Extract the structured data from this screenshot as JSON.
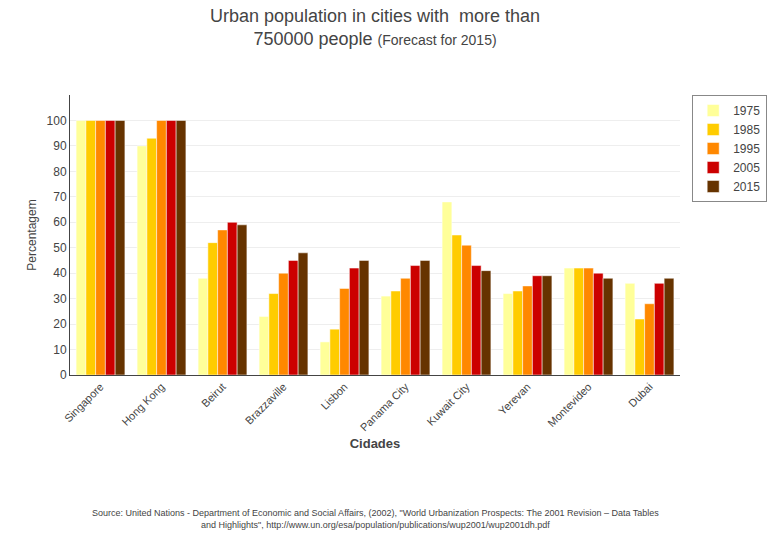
{
  "chart_data": {
    "type": "bar",
    "title": "Urban population in cities with  more than\n750000 people",
    "subtitle": "(Forecast for 2015)",
    "xlabel": "Cidades",
    "ylabel": "Percentagem",
    "categories": [
      "Singapore",
      "Hong Kong",
      "Beirut",
      "Brazzaville",
      "Lisbon",
      "Panama City",
      "Kuwait City",
      "Yerevan",
      "Montevideo",
      "Dubai"
    ],
    "series": [
      {
        "name": "1975",
        "color": "#FFFF99",
        "values": [
          100,
          90,
          38,
          23,
          13,
          31,
          68,
          32,
          42,
          36
        ]
      },
      {
        "name": "1985",
        "color": "#FFCC00",
        "values": [
          100,
          93,
          52,
          32,
          18,
          33,
          55,
          33,
          42,
          22
        ]
      },
      {
        "name": "1995",
        "color": "#FF8800",
        "values": [
          100,
          100,
          57,
          40,
          34,
          38,
          51,
          35,
          42,
          28
        ]
      },
      {
        "name": "2005",
        "color": "#CC0000",
        "values": [
          100,
          100,
          60,
          45,
          42,
          43,
          43,
          39,
          40,
          36
        ]
      },
      {
        "name": "2015",
        "color": "#663300",
        "values": [
          100,
          100,
          59,
          48,
          45,
          45,
          41,
          39,
          38,
          38
        ]
      }
    ],
    "ylim": [
      0,
      110
    ],
    "yticks": [
      0,
      10,
      20,
      30,
      40,
      50,
      60,
      70,
      80,
      90,
      100
    ],
    "grid": true,
    "legend": "right",
    "annotations": [
      {
        "text": "Source: United Nations - Department of Economic and Social Affairs, (2002), \"World Urbanization Prospects: The 2001 Revision – Data Tables\nand Highlights\", http://www.un.org/esa/population/publications/wup2001/wup2001dh.pdf"
      }
    ]
  }
}
